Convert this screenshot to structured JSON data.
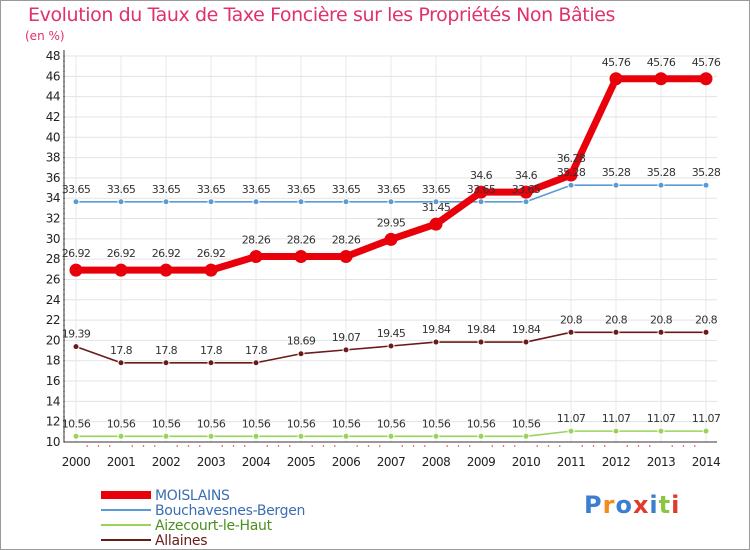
{
  "header": {
    "title": "Evolution du Taux de Taxe Foncière sur les Propriétés Non Bâties",
    "unit": "(en %)"
  },
  "logo": {
    "text": "Proxiti",
    "colors": [
      "#3a7fd0",
      "#f28c1a",
      "#3a7fd0",
      "#e23a2e",
      "#3a7fd0",
      "#8cc63f",
      "#e23a2e"
    ]
  },
  "chart_data": {
    "type": "line",
    "title": "Evolution du Taux de Taxe Foncière sur les Propriétés Non Bâties",
    "ylabel": "(en %)",
    "xlabel": "",
    "x": [
      "2000",
      "2001",
      "2002",
      "2003",
      "2004",
      "2005",
      "2006",
      "2007",
      "2008",
      "2009",
      "2010",
      "2011",
      "2012",
      "2013",
      "2014"
    ],
    "ylim": [
      10,
      48
    ],
    "yticks": [
      10,
      12,
      14,
      16,
      18,
      20,
      22,
      24,
      26,
      28,
      30,
      32,
      34,
      36,
      38,
      40,
      42,
      44,
      46,
      48
    ],
    "grid": true,
    "legend_position": "bottom-left",
    "series": [
      {
        "name": "MOISLAINS",
        "color": "#e8000b",
        "values": [
          26.92,
          26.92,
          26.92,
          26.92,
          28.26,
          28.26,
          28.26,
          29.95,
          31.45,
          34.6,
          34.6,
          36.28,
          45.76,
          45.76,
          45.76
        ],
        "labels": [
          "26.92",
          "26.92",
          "26.92",
          "26.92",
          "28.26",
          "28.26",
          "28.26",
          "29.95",
          "31.45",
          "34.6",
          "34.6",
          "36.28",
          "45.76",
          "45.76",
          "45.76"
        ]
      },
      {
        "name": "Bouchavesnes-Bergen",
        "color": "#5b9bd5",
        "values": [
          33.65,
          33.65,
          33.65,
          33.65,
          33.65,
          33.65,
          33.65,
          33.65,
          33.65,
          33.65,
          33.65,
          35.28,
          35.28,
          35.28,
          35.28
        ],
        "labels": [
          "33.65",
          "33.65",
          "33.65",
          "33.65",
          "33.65",
          "33.65",
          "33.65",
          "33.65",
          "33.65",
          "33.65",
          "33.65",
          "35.28",
          "35.28",
          "35.28",
          "35.28"
        ]
      },
      {
        "name": "Aizecourt-le-Haut",
        "color": "#9ad35a",
        "values": [
          10.56,
          10.56,
          10.56,
          10.56,
          10.56,
          10.56,
          10.56,
          10.56,
          10.56,
          10.56,
          10.56,
          11.07,
          11.07,
          11.07,
          11.07
        ],
        "labels": [
          "10.56",
          "10.56",
          "10.56",
          "10.56",
          "10.56",
          "10.56",
          "10.56",
          "10.56",
          "10.56",
          "10.56",
          "10.56",
          "11.07",
          "11.07",
          "11.07",
          "11.07"
        ]
      },
      {
        "name": "Allaines",
        "color": "#6b1a1a",
        "values": [
          19.39,
          17.8,
          17.8,
          17.8,
          17.8,
          18.69,
          19.07,
          19.45,
          19.84,
          19.84,
          19.84,
          20.8,
          20.8,
          20.8,
          20.8
        ],
        "labels": [
          "19.39",
          "17.8",
          "17.8",
          "17.8",
          "17.8",
          "18.69",
          "19.07",
          "19.45",
          "19.84",
          "19.84",
          "19.84",
          "20.8",
          "20.8",
          "20.8",
          "20.8"
        ]
      }
    ]
  }
}
